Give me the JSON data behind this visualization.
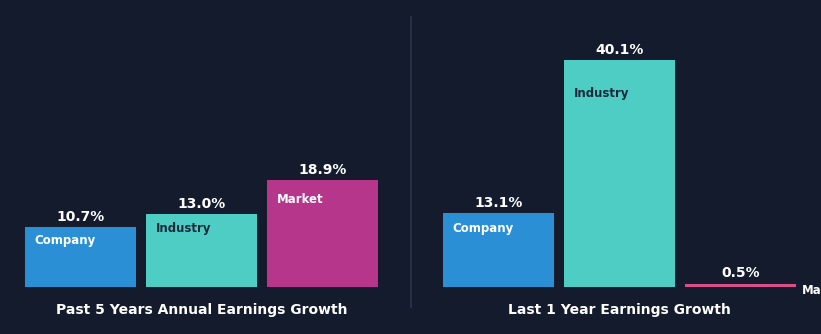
{
  "background_color": "#141b2d",
  "groups": [
    {
      "title": "Past 5 Years Annual Earnings Growth",
      "bars": [
        {
          "label": "Company",
          "value": 10.7,
          "color": "#2b8fd6",
          "label_color": "#ffffff"
        },
        {
          "label": "Industry",
          "value": 13.0,
          "color": "#4ecdc4",
          "label_color": "#1a2a3a"
        },
        {
          "label": "Market",
          "value": 18.9,
          "color": "#b5368a",
          "label_color": "#ffffff"
        }
      ]
    },
    {
      "title": "Last 1 Year Earnings Growth",
      "bars": [
        {
          "label": "Company",
          "value": 13.1,
          "color": "#2b8fd6",
          "label_color": "#ffffff"
        },
        {
          "label": "Industry",
          "value": 40.1,
          "color": "#4ecdc4",
          "label_color": "#1a2a3a"
        },
        {
          "label": "Market",
          "value": 0.5,
          "color": "#d94f8a",
          "label_color": "#ffffff"
        }
      ]
    }
  ],
  "text_color": "#ffffff",
  "label_fontsize": 8.5,
  "value_fontsize": 10,
  "title_fontsize": 10,
  "bar_width": 0.92,
  "ylim": [
    0,
    46
  ],
  "divider_color": "#2a3350"
}
